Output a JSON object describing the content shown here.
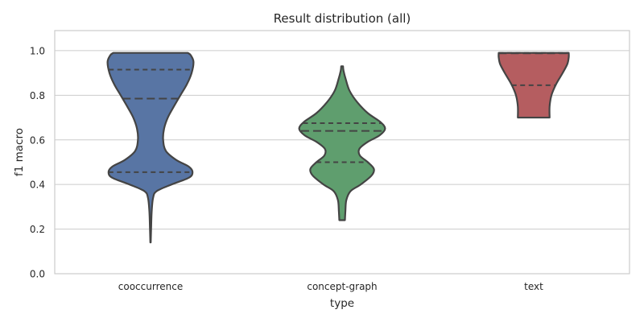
{
  "chart_data": {
    "type": "violin",
    "title": "Result distribution (all)",
    "xlabel": "type",
    "ylabel": "f1 macro",
    "ylim": [
      0,
      1.09
    ],
    "y_ticks": [
      "0.0",
      "0.2",
      "0.4",
      "0.6",
      "0.8",
      "1.0"
    ],
    "grid": "horizontal",
    "inner": "quartile",
    "categories": [
      "cooccurrence",
      "concept-graph",
      "text"
    ],
    "series": [
      {
        "category": "cooccurrence",
        "color": "#5875a4",
        "min": 0.14,
        "max": 0.99,
        "quartiles": [
          0.455,
          0.785,
          0.915
        ],
        "profile": [
          [
            0.14,
            0.004
          ],
          [
            0.2,
            0.012
          ],
          [
            0.28,
            0.025
          ],
          [
            0.34,
            0.055
          ],
          [
            0.37,
            0.13
          ],
          [
            0.4,
            0.45
          ],
          [
            0.43,
            0.82
          ],
          [
            0.455,
            0.9
          ],
          [
            0.48,
            0.82
          ],
          [
            0.51,
            0.55
          ],
          [
            0.55,
            0.33
          ],
          [
            0.6,
            0.27
          ],
          [
            0.65,
            0.29
          ],
          [
            0.7,
            0.37
          ],
          [
            0.75,
            0.5
          ],
          [
            0.8,
            0.64
          ],
          [
            0.85,
            0.78
          ],
          [
            0.9,
            0.88
          ],
          [
            0.95,
            0.92
          ],
          [
            0.98,
            0.86
          ],
          [
            0.99,
            0.8
          ]
        ]
      },
      {
        "category": "concept-graph",
        "color": "#5f9e6e",
        "min": 0.24,
        "max": 0.93,
        "quartiles": [
          0.5,
          0.64,
          0.675
        ],
        "profile": [
          [
            0.24,
            0.06
          ],
          [
            0.28,
            0.07
          ],
          [
            0.33,
            0.09
          ],
          [
            0.37,
            0.18
          ],
          [
            0.4,
            0.4
          ],
          [
            0.44,
            0.63
          ],
          [
            0.47,
            0.68
          ],
          [
            0.5,
            0.55
          ],
          [
            0.53,
            0.38
          ],
          [
            0.56,
            0.37
          ],
          [
            0.59,
            0.54
          ],
          [
            0.62,
            0.8
          ],
          [
            0.65,
            0.92
          ],
          [
            0.68,
            0.82
          ],
          [
            0.72,
            0.55
          ],
          [
            0.77,
            0.32
          ],
          [
            0.82,
            0.16
          ],
          [
            0.87,
            0.08
          ],
          [
            0.91,
            0.03
          ],
          [
            0.93,
            0.02
          ]
        ]
      },
      {
        "category": "text",
        "color": "#b55d60",
        "min": 0.7,
        "max": 0.99,
        "quartiles": [
          0.845,
          0.988,
          0.99
        ],
        "profile": [
          [
            0.7,
            0.34
          ],
          [
            0.75,
            0.34
          ],
          [
            0.8,
            0.38
          ],
          [
            0.85,
            0.48
          ],
          [
            0.9,
            0.62
          ],
          [
            0.94,
            0.72
          ],
          [
            0.97,
            0.75
          ],
          [
            0.99,
            0.75
          ]
        ]
      }
    ]
  }
}
